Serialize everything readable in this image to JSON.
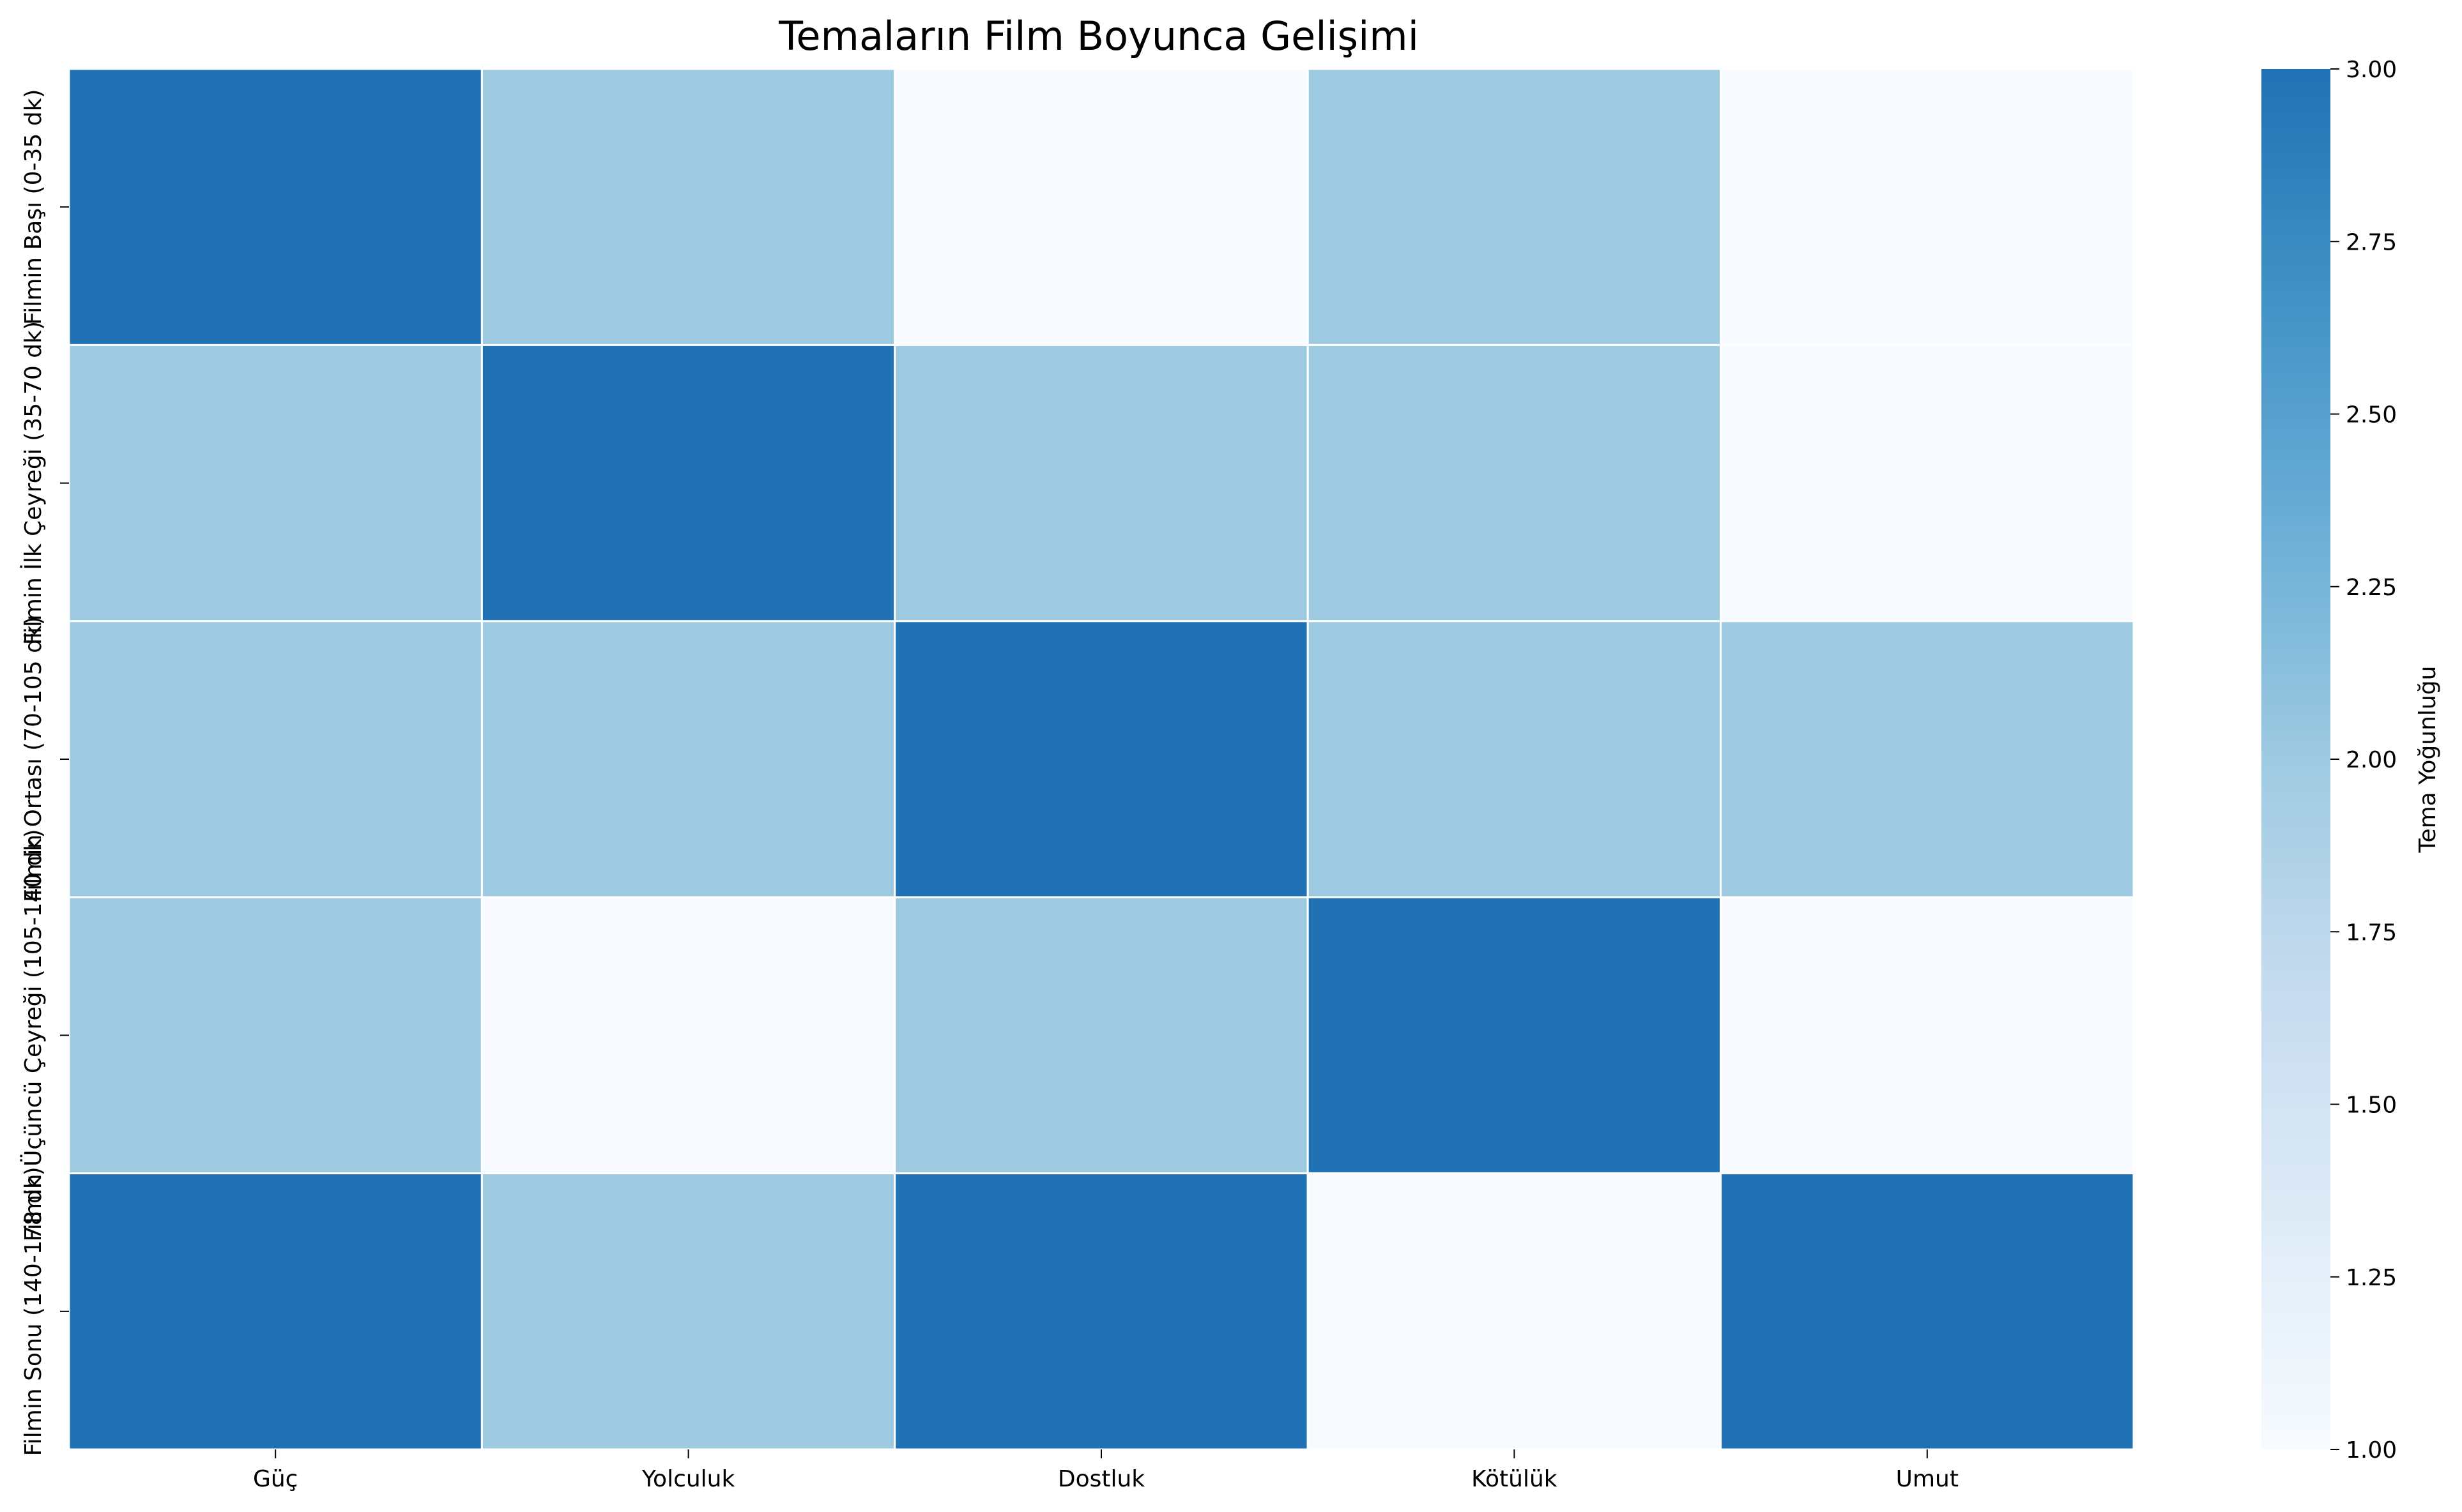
{
  "chart_data": {
    "type": "heatmap",
    "title": "Temaların Film Boyunca Gelişimi",
    "xlabel": "",
    "ylabel": "",
    "x_categories": [
      "Güç",
      "Yolculuk",
      "Dostluk",
      "Kötülük",
      "Umut"
    ],
    "y_categories": [
      "Filmin Başı (0-35 dk)",
      "Filmin İlk Çeyreği (35-70 dk)",
      "Filmin Ortası (70-105 dk)",
      "Filmin Üçüncü Çeyreği (105-140 dk)",
      "Filmin Sonu (140-178 dk)"
    ],
    "values": [
      [
        3,
        2,
        1,
        2,
        1
      ],
      [
        2,
        3,
        2,
        2,
        1
      ],
      [
        2,
        2,
        3,
        2,
        2
      ],
      [
        2,
        1,
        2,
        3,
        1
      ],
      [
        3,
        2,
        3,
        1,
        3
      ]
    ],
    "colorbar": {
      "label": "Tema Yoğunluğu",
      "range": [
        1.0,
        3.0
      ],
      "ticks": [
        "1.00",
        "1.25",
        "1.50",
        "1.75",
        "2.00",
        "2.25",
        "2.50",
        "2.75",
        "3.00"
      ],
      "colormap": [
        "#f7fbff",
        "#deebf7",
        "#c6dbef",
        "#9ecae1",
        "#6baed6",
        "#4292c6",
        "#2171b5"
      ]
    },
    "grid": false,
    "cell_border_color": "#ffffff"
  }
}
